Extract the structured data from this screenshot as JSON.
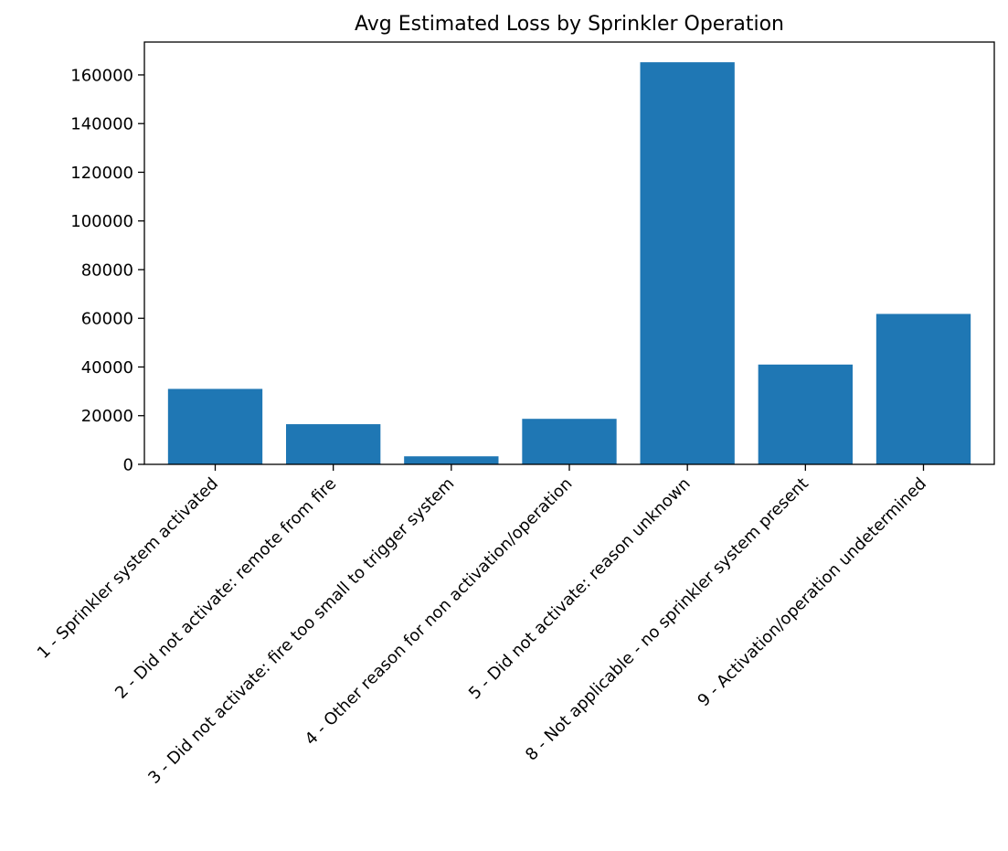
{
  "chart_data": {
    "type": "bar",
    "title": "Avg Estimated Loss by Sprinkler Operation",
    "xlabel": "",
    "ylabel": "",
    "categories": [
      "1 - Sprinkler system activated",
      "2 - Did not activate: remote from fire",
      "3 - Did not activate: fire too small to trigger system",
      "4 - Other reason for non activation/operation",
      "5 - Did not activate: reason unknown",
      "8 - Not applicable - no sprinkler system present",
      "9 - Activation/operation undetermined"
    ],
    "values": [
      31000,
      16500,
      3300,
      18700,
      165200,
      41000,
      61800
    ],
    "ylim": [
      0,
      173500
    ],
    "yticks": [
      0,
      20000,
      40000,
      60000,
      80000,
      100000,
      120000,
      140000,
      160000
    ],
    "ytick_labels": [
      "0",
      "20000",
      "40000",
      "60000",
      "80000",
      "100000",
      "120000",
      "140000",
      "160000"
    ],
    "bar_color": "#1f77b4",
    "grid": false,
    "legend": "none"
  }
}
